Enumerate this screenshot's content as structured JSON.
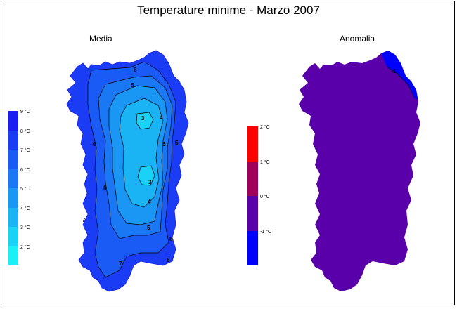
{
  "title": "Temperature minime - Marzo 2007",
  "panels": {
    "media": {
      "label": "Media",
      "legend": [
        {
          "label": "9 °C",
          "color": "#1a1ef0"
        },
        {
          "label": "8 °C",
          "color": "#1a3cf5"
        },
        {
          "label": "7 °C",
          "color": "#1a5af5"
        },
        {
          "label": "6 °C",
          "color": "#1a78f5"
        },
        {
          "label": "5 °C",
          "color": "#1a96f5"
        },
        {
          "label": "4 °C",
          "color": "#1ab4f5"
        },
        {
          "label": "3 °C",
          "color": "#1ad2f5"
        },
        {
          "label": "2 °C",
          "color": "#1af0f5"
        }
      ],
      "contour_labels": [
        "6",
        "5",
        "3",
        "4",
        "5",
        "5",
        "6",
        "3",
        "6",
        "4",
        "5",
        "7",
        "6",
        "6",
        "7"
      ]
    },
    "anomalia": {
      "label": "Anomalia",
      "legend": [
        {
          "label": "2 °C",
          "color": "#ff0000"
        },
        {
          "label": "1 °C",
          "color": "#a0005a"
        },
        {
          "label": "0 °C",
          "color": "#5a00aa"
        },
        {
          "label": "-1 °C",
          "color": "#0000ff"
        }
      ],
      "contour_labels": [
        "-1"
      ],
      "fill_color": "#5a00aa",
      "edge_color": "#0000ff"
    }
  }
}
